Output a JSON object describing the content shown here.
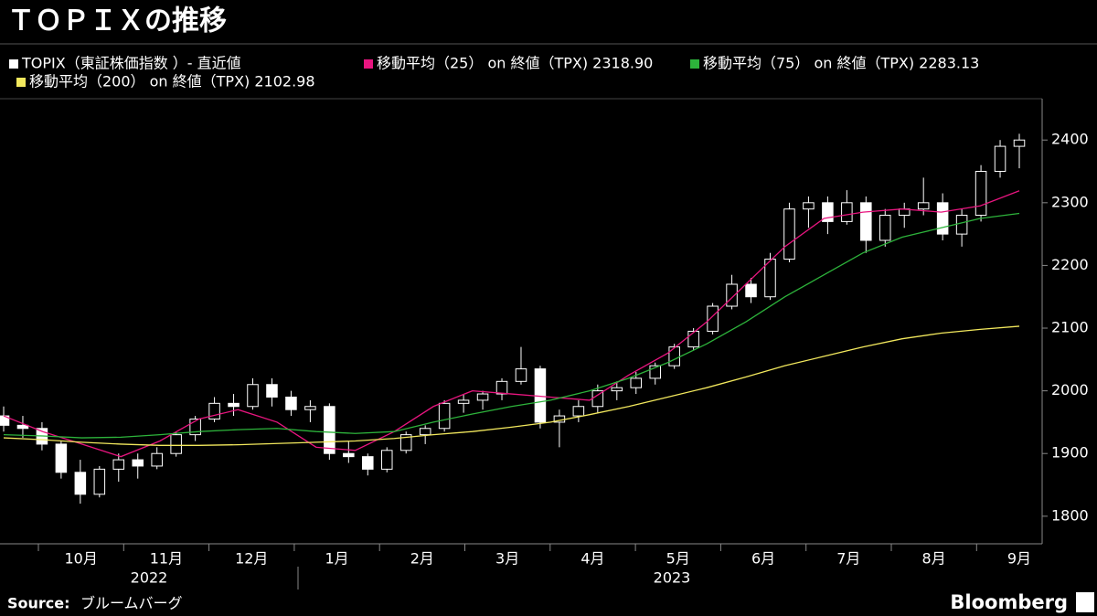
{
  "chart_data": {
    "type": "candlestick",
    "title": "ＴＯＰＩＸの推移",
    "candles": {
      "name": "TOPIX（東証株価指数 ）- 直近値",
      "color": "#ffffff",
      "open": [
        1960,
        1945,
        1940,
        1915,
        1870,
        1835,
        1875,
        1890,
        1880,
        1900,
        1930,
        1955,
        1980,
        1975,
        2010,
        1990,
        1970,
        1975,
        1900,
        1895,
        1875,
        1905,
        1930,
        1940,
        1980,
        1985,
        1995,
        2015,
        2035,
        1950,
        1960,
        1975,
        2000,
        2005,
        2020,
        2040,
        2070,
        2095,
        2135,
        2170,
        2150,
        2210,
        2290,
        2300,
        2270,
        2300,
        2240,
        2280,
        2290,
        2300,
        2250,
        2280,
        2350,
        2390
      ],
      "high": [
        1975,
        1960,
        1950,
        1920,
        1890,
        1880,
        1900,
        1900,
        1910,
        1935,
        1960,
        1990,
        1995,
        2020,
        2020,
        2000,
        1985,
        1980,
        1920,
        1900,
        1910,
        1935,
        1945,
        1985,
        1995,
        2000,
        2020,
        2070,
        2040,
        1970,
        1985,
        2010,
        2015,
        2030,
        2045,
        2075,
        2100,
        2140,
        2185,
        2180,
        2220,
        2300,
        2310,
        2310,
        2320,
        2310,
        2290,
        2300,
        2340,
        2315,
        2290,
        2360,
        2400,
        2410
      ],
      "low": [
        1935,
        1925,
        1905,
        1860,
        1820,
        1830,
        1855,
        1860,
        1875,
        1895,
        1920,
        1950,
        1960,
        1970,
        1975,
        1960,
        1950,
        1890,
        1885,
        1865,
        1870,
        1900,
        1915,
        1935,
        1965,
        1970,
        1985,
        2010,
        1940,
        1910,
        1950,
        1965,
        1985,
        1995,
        2010,
        2035,
        2065,
        2090,
        2130,
        2140,
        2145,
        2205,
        2260,
        2250,
        2265,
        2220,
        2230,
        2260,
        2280,
        2240,
        2230,
        2270,
        2340,
        2355
      ],
      "close": [
        1945,
        1940,
        1915,
        1870,
        1835,
        1875,
        1890,
        1880,
        1900,
        1930,
        1955,
        1980,
        1975,
        2010,
        1990,
        1970,
        1975,
        1900,
        1895,
        1875,
        1905,
        1930,
        1940,
        1980,
        1985,
        1995,
        2015,
        2035,
        1950,
        1960,
        1975,
        2000,
        2005,
        2020,
        2040,
        2070,
        2095,
        2135,
        2170,
        2150,
        2210,
        2290,
        2300,
        2270,
        2300,
        2240,
        2280,
        2290,
        2300,
        2250,
        2280,
        2350,
        2390,
        2400
      ]
    },
    "lines": [
      {
        "name": "移動平均（25） on 終値（TPX) 2318.90",
        "color": "#e8157f",
        "values": [
          1960,
          1935,
          1915,
          1895,
          1920,
          1955,
          1970,
          1950,
          1910,
          1905,
          1935,
          1975,
          2000,
          1995,
          1990,
          1985,
          2025,
          2060,
          2110,
          2170,
          2230,
          2275,
          2285,
          2290,
          2285,
          2295,
          2319
        ]
      },
      {
        "name": "移動平均（75） on 終値（TPX) 2283.13",
        "color": "#2db33b",
        "values": [
          1930,
          1928,
          1925,
          1926,
          1930,
          1935,
          1938,
          1940,
          1935,
          1932,
          1935,
          1950,
          1963,
          1975,
          1985,
          2000,
          2020,
          2045,
          2075,
          2110,
          2150,
          2185,
          2220,
          2245,
          2260,
          2275,
          2283
        ]
      },
      {
        "name": "移動平均（200） on 終値（TPX) 2102.98",
        "color": "#f2e85d",
        "values": [
          1925,
          1922,
          1918,
          1915,
          1913,
          1913,
          1914,
          1916,
          1918,
          1920,
          1924,
          1930,
          1935,
          1942,
          1950,
          1962,
          1975,
          1990,
          2005,
          2022,
          2040,
          2055,
          2070,
          2083,
          2092,
          2098,
          2103
        ]
      }
    ],
    "categories": [
      "10月",
      "11月",
      "12月",
      "1月",
      "2月",
      "3月",
      "4月",
      "5月",
      "6月",
      "7月",
      "8月",
      "9月"
    ],
    "years": [
      "2022",
      "2023"
    ],
    "ylim": [
      1756,
      2463
    ],
    "yticks": [
      1800,
      1900,
      2000,
      2100,
      2200,
      2300,
      2400
    ],
    "source_label": "Source:",
    "source": "ブルームバーグ",
    "brand": "Bloomberg"
  }
}
